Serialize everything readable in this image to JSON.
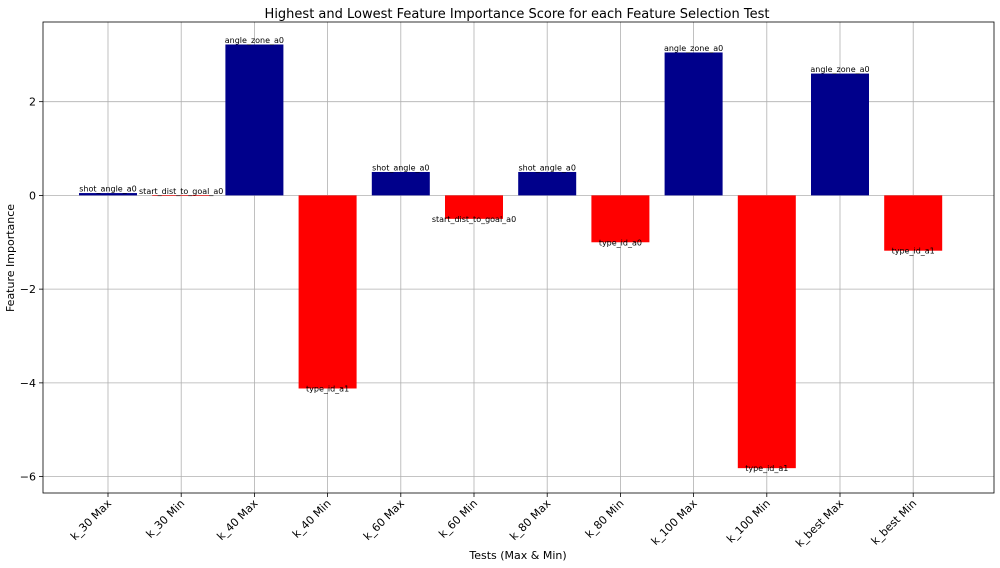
{
  "chart_data": {
    "type": "bar",
    "title": "Highest and Lowest Feature Importance Score for each Feature Selection Test",
    "xlabel": "Tests (Max & Min)",
    "ylabel": "Feature Importance",
    "ylim": [
      -6.35,
      3.7
    ],
    "yticks": [
      -6,
      -4,
      -2,
      0,
      2
    ],
    "grid": true,
    "categories": [
      "k_30 Max",
      "k_30 Min",
      "k_40 Max",
      "k_40 Min",
      "k_60 Max",
      "k_60 Min",
      "k_80 Max",
      "k_80 Min",
      "k_100 Max",
      "k_100 Min",
      "k_best Max",
      "k_best Min"
    ],
    "values": [
      0.05,
      0.0,
      3.22,
      -4.12,
      0.5,
      -0.5,
      0.5,
      -1.0,
      3.05,
      -5.82,
      2.6,
      -1.18
    ],
    "feature_labels": [
      "shot_angle_a0",
      "start_dist_to_goal_a0",
      "angle_zone_a0",
      "type_id_a1",
      "shot_angle_a0",
      "start_dist_to_goal_a0",
      "shot_angle_a0",
      "type_id_a0",
      "angle_zone_a0",
      "type_id_a1",
      "angle_zone_a0",
      "type_id_a1"
    ],
    "colors": {
      "max": "#00008b",
      "min": "#ff0000"
    }
  }
}
